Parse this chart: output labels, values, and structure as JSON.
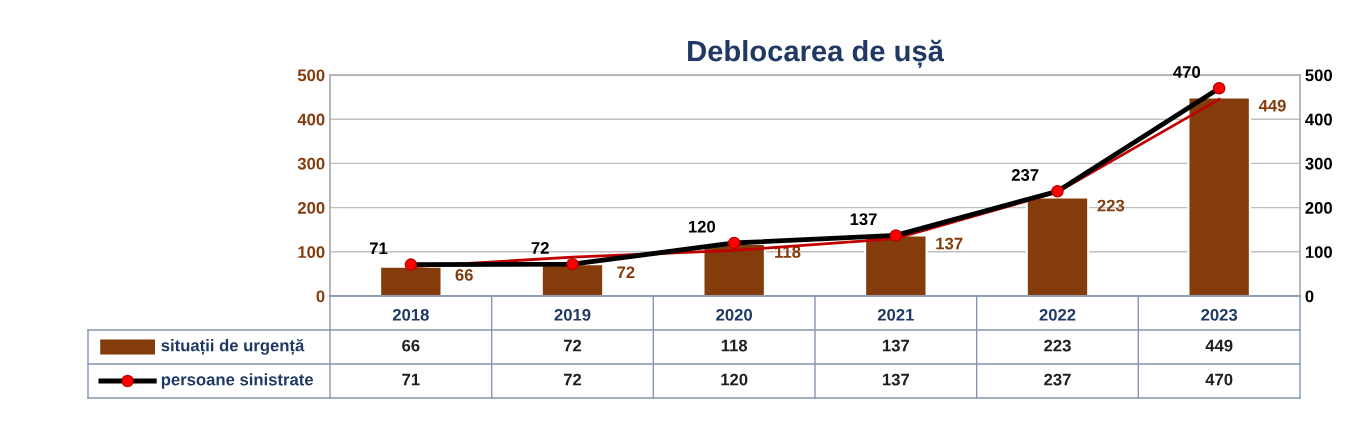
{
  "chart_data": {
    "type": "bar",
    "title": "Deblocarea de ușă",
    "categories": [
      "2018",
      "2019",
      "2020",
      "2021",
      "2022",
      "2023"
    ],
    "series": [
      {
        "name": "situații de urgență",
        "color": "#843c0c",
        "values": [
          66,
          72,
          118,
          137,
          223,
          449
        ],
        "value_labels": [
          "66",
          "72",
          "118",
          "137",
          "223",
          "449"
        ]
      },
      {
        "name": "persoane sinistrate",
        "type": "line",
        "axis": "y2",
        "color": "#000000",
        "marker": "circle",
        "values": [
          71,
          72,
          120,
          137,
          237,
          470
        ],
        "value_labels": [
          "71",
          "72",
          "120",
          "137",
          "237",
          "470"
        ]
      },
      {
        "type": "line",
        "color": "#c00000",
        "values": [
          66,
          88,
          103,
          130,
          235,
          445
        ]
      }
    ],
    "ylim": [
      0,
      500
    ],
    "yticks": [
      0,
      100,
      200,
      300,
      400,
      500
    ],
    "y2lim": [
      0,
      500
    ],
    "y2ticks": [
      0,
      100,
      200,
      300,
      400,
      500
    ],
    "grid": "y",
    "legend": "bottom"
  }
}
